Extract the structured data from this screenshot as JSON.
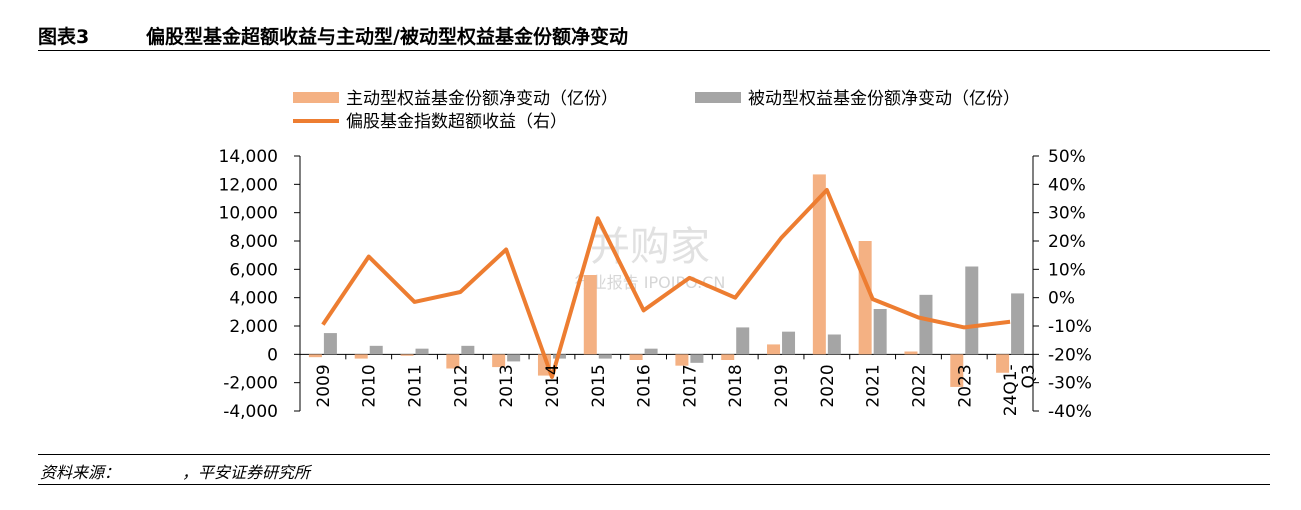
{
  "header": {
    "figure_no": "图表3",
    "title": "偏股型基金超额收益与主动型/被动型权益基金份额净变动"
  },
  "footer": {
    "source_label": "资料来源：",
    "source_text": "，平安证券研究所"
  },
  "watermark": {
    "main": "并购家",
    "sub": "行业报告 IPOIPO.CN"
  },
  "chart_data": {
    "type": "bar",
    "categories": [
      "2009",
      "2010",
      "2011",
      "2012",
      "2013",
      "2014",
      "2015",
      "2016",
      "2017",
      "2018",
      "2019",
      "2020",
      "2021",
      "2022",
      "2023",
      "24Q1-Q3"
    ],
    "series": [
      {
        "name": "主动型权益基金份额净变动（亿份）",
        "kind": "bar",
        "axis": "left",
        "color": "#f4b183",
        "values": [
          -200,
          -300,
          -100,
          -1000,
          -900,
          -1500,
          5600,
          -400,
          -800,
          -400,
          700,
          12700,
          8000,
          200,
          -2300,
          -1300
        ]
      },
      {
        "name": "被动型权益基金份额净变动（亿份）",
        "kind": "bar",
        "axis": "left",
        "color": "#a5a5a5",
        "values": [
          1500,
          600,
          400,
          600,
          -500,
          -300,
          -300,
          400,
          -600,
          1900,
          1600,
          1400,
          3200,
          4200,
          6200,
          4300
        ]
      },
      {
        "name": "偏股基金指数超额收益（右）",
        "kind": "line",
        "axis": "right",
        "color": "#ed7d31",
        "values": [
          -9.5,
          14.5,
          -1.5,
          2,
          17,
          -28,
          28,
          -4.5,
          7,
          0,
          21,
          38,
          -0.5,
          -7,
          -10.5,
          -8.5
        ]
      }
    ],
    "y_left": {
      "min": -4000,
      "max": 14000,
      "step": 2000,
      "tick_labels": [
        "-4,000",
        "-2,000",
        "0",
        "2,000",
        "4,000",
        "6,000",
        "8,000",
        "10,000",
        "12,000",
        "14,000"
      ]
    },
    "y_right": {
      "min": -40,
      "max": 50,
      "step": 10,
      "tick_labels": [
        "-40%",
        "-30%",
        "-20%",
        "-10%",
        "0%",
        "10%",
        "20%",
        "30%",
        "40%",
        "50%"
      ]
    },
    "grid": false,
    "legend_position": "top"
  }
}
